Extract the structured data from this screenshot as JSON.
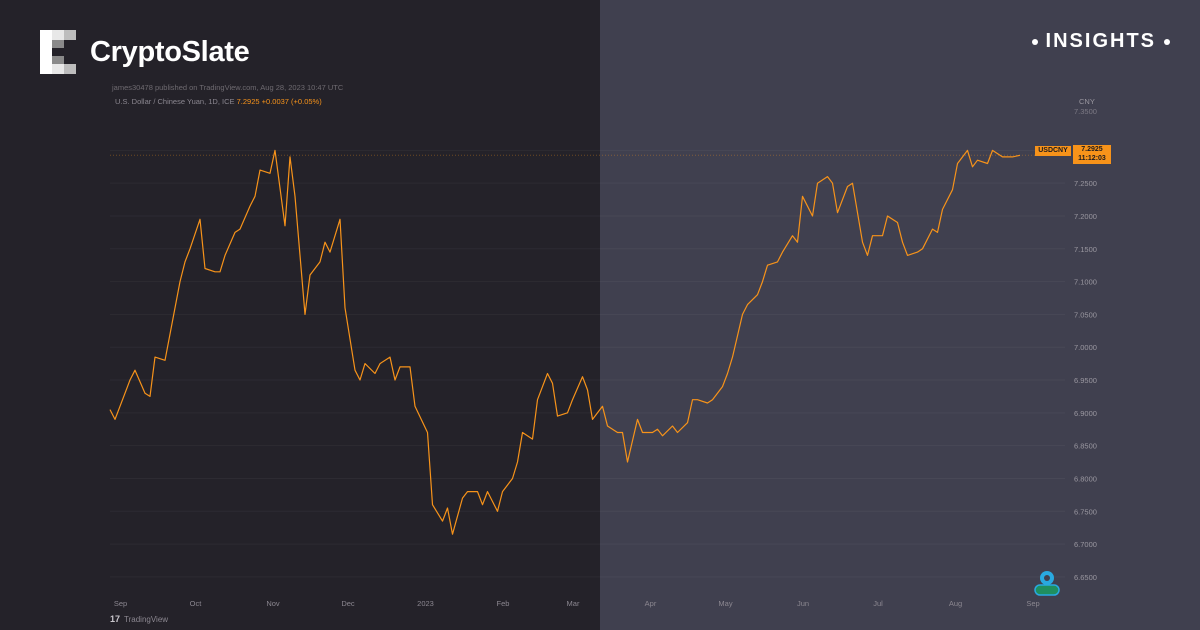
{
  "brand": {
    "name": "CryptoSlate",
    "tag": "INSIGHTS"
  },
  "colors": {
    "line": "#f7931a",
    "bg_left": "#242229",
    "bg_right": "#40404f",
    "accent": "#f7931a"
  },
  "chart_header": {
    "published": "james30478 published on TradingView.com, Aug 28, 2023 10:47 UTC",
    "symbol": "U.S. Dollar / Chinese Yuan, 1D, ICE",
    "last": "7.2925",
    "change": "+0.0037 (+0.05%)"
  },
  "chart_data": {
    "type": "line",
    "title": "",
    "xlabel": "",
    "ylabel": "CNY",
    "ylim": [
      6.63,
      7.36
    ],
    "x_ticks": [
      "Sep",
      "Oct",
      "Nov",
      "Dec",
      "2023",
      "Feb",
      "Mar",
      "Apr",
      "May",
      "Jun",
      "Jul",
      "Aug",
      "Sep"
    ],
    "y_ticks": [
      "7.3000",
      "7.2500",
      "7.2000",
      "7.1500",
      "7.1000",
      "7.0500",
      "7.0000",
      "6.9500",
      "6.9000",
      "6.8500",
      "6.8000",
      "6.7500",
      "6.7000",
      "6.6500"
    ],
    "y_tick_top_partial": "7.3500",
    "series": [
      {
        "name": "USDCNY",
        "x": [
          "2022-08-29",
          "2022-08-31",
          "2022-09-02",
          "2022-09-06",
          "2022-09-08",
          "2022-09-12",
          "2022-09-14",
          "2022-09-16",
          "2022-09-20",
          "2022-09-22",
          "2022-09-26",
          "2022-09-28",
          "2022-09-30",
          "2022-10-04",
          "2022-10-06",
          "2022-10-10",
          "2022-10-12",
          "2022-10-14",
          "2022-10-18",
          "2022-10-20",
          "2022-10-24",
          "2022-10-26",
          "2022-10-28",
          "2022-11-01",
          "2022-11-03",
          "2022-11-07",
          "2022-11-09",
          "2022-11-11",
          "2022-11-15",
          "2022-11-17",
          "2022-11-21",
          "2022-11-23",
          "2022-11-25",
          "2022-11-29",
          "2022-12-01",
          "2022-12-05",
          "2022-12-07",
          "2022-12-09",
          "2022-12-13",
          "2022-12-15",
          "2022-12-19",
          "2022-12-21",
          "2022-12-23",
          "2022-12-27",
          "2022-12-29",
          "2023-01-03",
          "2023-01-05",
          "2023-01-09",
          "2023-01-11",
          "2023-01-13",
          "2023-01-17",
          "2023-01-19",
          "2023-01-23",
          "2023-01-25",
          "2023-01-27",
          "2023-01-31",
          "2023-02-02",
          "2023-02-06",
          "2023-02-08",
          "2023-02-10",
          "2023-02-14",
          "2023-02-16",
          "2023-02-20",
          "2023-02-22",
          "2023-02-24",
          "2023-02-28",
          "2023-03-02",
          "2023-03-06",
          "2023-03-08",
          "2023-03-10",
          "2023-03-14",
          "2023-03-16",
          "2023-03-20",
          "2023-03-22",
          "2023-03-24",
          "2023-03-28",
          "2023-03-30",
          "2023-04-03",
          "2023-04-05",
          "2023-04-07",
          "2023-04-11",
          "2023-04-13",
          "2023-04-17",
          "2023-04-19",
          "2023-04-21",
          "2023-04-25",
          "2023-04-27",
          "2023-05-01",
          "2023-05-03",
          "2023-05-05",
          "2023-05-09",
          "2023-05-11",
          "2023-05-15",
          "2023-05-17",
          "2023-05-19",
          "2023-05-23",
          "2023-05-25",
          "2023-05-29",
          "2023-05-31",
          "2023-06-02",
          "2023-06-06",
          "2023-06-08",
          "2023-06-12",
          "2023-06-14",
          "2023-06-16",
          "2023-06-20",
          "2023-06-22",
          "2023-06-26",
          "2023-06-28",
          "2023-06-30",
          "2023-07-04",
          "2023-07-06",
          "2023-07-10",
          "2023-07-12",
          "2023-07-14",
          "2023-07-18",
          "2023-07-20",
          "2023-07-24",
          "2023-07-26",
          "2023-07-28",
          "2023-08-01",
          "2023-08-03",
          "2023-08-07",
          "2023-08-09",
          "2023-08-11",
          "2023-08-15",
          "2023-08-17",
          "2023-08-21",
          "2023-08-23",
          "2023-08-25",
          "2023-08-28"
        ],
        "values": [
          6.905,
          6.89,
          6.91,
          6.95,
          6.965,
          6.93,
          6.925,
          6.985,
          6.98,
          7.02,
          7.1,
          7.13,
          7.15,
          7.195,
          7.12,
          7.115,
          7.115,
          7.14,
          7.175,
          7.18,
          7.215,
          7.23,
          7.27,
          7.265,
          7.3,
          7.185,
          7.29,
          7.23,
          7.05,
          7.11,
          7.13,
          7.16,
          7.145,
          7.195,
          7.06,
          6.965,
          6.95,
          6.975,
          6.96,
          6.975,
          6.985,
          6.95,
          6.97,
          6.97,
          6.91,
          6.87,
          6.76,
          6.735,
          6.755,
          6.715,
          6.77,
          6.78,
          6.78,
          6.76,
          6.78,
          6.75,
          6.78,
          6.8,
          6.825,
          6.87,
          6.86,
          6.92,
          6.96,
          6.945,
          6.895,
          6.9,
          6.92,
          6.955,
          6.935,
          6.89,
          6.91,
          6.88,
          6.87,
          6.87,
          6.825,
          6.89,
          6.87,
          6.87,
          6.875,
          6.865,
          6.88,
          6.87,
          6.885,
          6.92,
          6.92,
          6.915,
          6.92,
          6.94,
          6.96,
          6.985,
          7.05,
          7.065,
          7.08,
          7.1,
          7.125,
          7.13,
          7.145,
          7.17,
          7.16,
          7.23,
          7.2,
          7.25,
          7.26,
          7.25,
          7.205,
          7.245,
          7.25,
          7.16,
          7.14,
          7.17,
          7.17,
          7.2,
          7.19,
          7.16,
          7.14,
          7.145,
          7.15,
          7.18,
          7.175,
          7.21,
          7.24,
          7.28,
          7.3,
          7.275,
          7.285,
          7.28,
          7.3,
          7.29,
          7.29,
          7.29,
          7.2925
        ]
      }
    ],
    "last_value": "7.2925",
    "last_value_label": "USDCNY",
    "countdown": "11:12:03"
  },
  "footer": {
    "tv_label": "TradingView"
  }
}
